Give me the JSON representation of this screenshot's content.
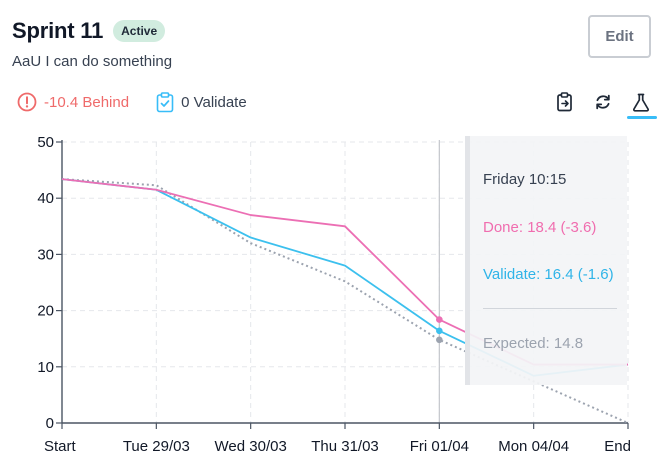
{
  "header": {
    "title": "Sprint 11",
    "status_badge": "Active",
    "subtitle": "AaU I can do something",
    "edit_label": "Edit"
  },
  "status": {
    "behind_label": "-10.4 Behind",
    "validate_label": "0 Validate"
  },
  "toolbar": {
    "icons": [
      "clipboard-icon",
      "refresh-icon",
      "flask-icon"
    ],
    "active": "flask-icon"
  },
  "colors": {
    "done": "#ec6fb4",
    "validate": "#3cc0ee",
    "expected": "#9ca3af",
    "behind": "#ef6a6a",
    "accent": "#38bdf8"
  },
  "chart_data": {
    "type": "line",
    "categories": [
      "Start",
      "Tue 29/03",
      "Wed 30/03",
      "Thu 31/03",
      "Fri 01/04",
      "Mon 04/04",
      "End"
    ],
    "ylim": [
      0,
      50
    ],
    "yticks": [
      0,
      10,
      20,
      30,
      40,
      50
    ],
    "grid": true,
    "series": [
      {
        "name": "Done",
        "color": "#ec6fb4",
        "style": "solid",
        "x": [
          0,
          1,
          2,
          3,
          4,
          5,
          6
        ],
        "values": [
          43.4,
          41.5,
          37,
          35,
          18.4,
          10.4,
          10.4
        ]
      },
      {
        "name": "Validate",
        "color": "#3cc0ee",
        "style": "solid",
        "x": [
          0,
          1,
          2,
          3,
          4,
          5,
          6
        ],
        "values": [
          43.4,
          41.5,
          33,
          28,
          16.4,
          8.4,
          10.4
        ]
      },
      {
        "name": "Expected",
        "color": "#9ca3af",
        "style": "dotted",
        "x": [
          0,
          1,
          2,
          3,
          4,
          6
        ],
        "values": [
          43.4,
          42.3,
          32,
          25.2,
          14.8,
          0
        ]
      }
    ],
    "cursor_index": 4,
    "tooltip": {
      "time": "Friday 10:15",
      "done": "Done: 18.4 (-3.6)",
      "validate": "Validate: 16.4 (-1.6)",
      "expected": "Expected: 14.8"
    }
  }
}
